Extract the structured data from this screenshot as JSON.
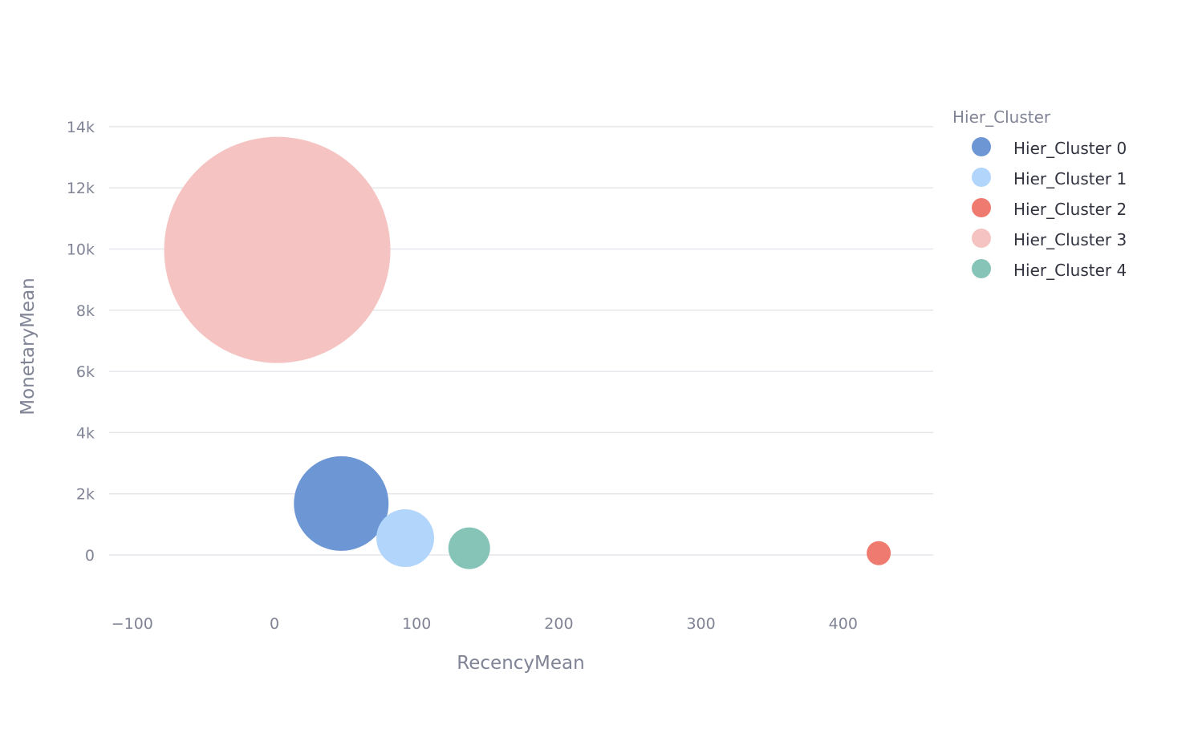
{
  "chart_data": {
    "type": "scatter",
    "subtype": "bubble",
    "title": "",
    "xlabel": "RecencyMean",
    "ylabel": "MonetaryMean",
    "xlim": [
      -110,
      465
    ],
    "ylim": [
      -1800,
      14400
    ],
    "x_ticks": [
      -100,
      0,
      100,
      200,
      300,
      400
    ],
    "x_tick_labels": [
      "−100",
      "0",
      "100",
      "200",
      "300",
      "400"
    ],
    "y_ticks": [
      0,
      2000,
      4000,
      6000,
      8000,
      10000,
      12000,
      14000
    ],
    "y_tick_labels": [
      "0",
      "2k",
      "4k",
      "6k",
      "8k",
      "10k",
      "12k",
      "14k"
    ],
    "grid": true,
    "legend": {
      "title": "Hier_Cluster",
      "placement": "right"
    },
    "series": [
      {
        "name": "Hier_Cluster 0",
        "color": "#6c96d4",
        "opacity": 1.0,
        "x": 47,
        "y": 1680,
        "size": 59
      },
      {
        "name": "Hier_Cluster 1",
        "color": "#b2d6fb",
        "opacity": 1.0,
        "x": 92,
        "y": 550,
        "size": 36
      },
      {
        "name": "Hier_Cluster 2",
        "color": "#ef7a6f",
        "opacity": 1.0,
        "x": 425,
        "y": 60,
        "size": 15
      },
      {
        "name": "Hier_Cluster 3",
        "color": "#f5c4c2",
        "opacity": 1.0,
        "x": 2,
        "y": 9970,
        "size": 141
      },
      {
        "name": "Hier_Cluster 4",
        "color": "#87c4b8",
        "opacity": 1.0,
        "x": 137,
        "y": 220,
        "size": 26
      }
    ]
  }
}
